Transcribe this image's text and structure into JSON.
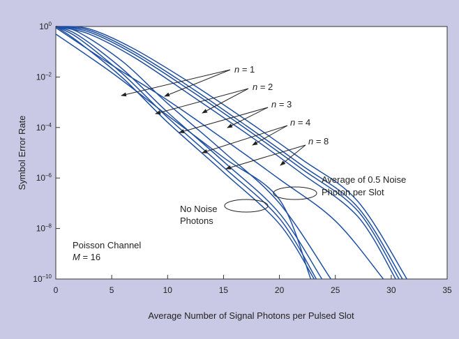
{
  "chart_data": {
    "type": "line",
    "title": "",
    "xlabel": "Average Number of Signal Photons per Pulsed Slot",
    "ylabel": "Symbol Error Rate",
    "xlim": [
      0,
      35
    ],
    "ylim_exponent": [
      -10,
      0
    ],
    "yscale": "log",
    "xticks": [
      "0",
      "5",
      "10",
      "15",
      "20",
      "25",
      "30",
      "35"
    ],
    "yticks": [
      {
        "base": "10",
        "exp": "0"
      },
      {
        "base": "10",
        "exp": "–2"
      },
      {
        "base": "10",
        "exp": "–4"
      },
      {
        "base": "10",
        "exp": "–6"
      },
      {
        "base": "10",
        "exp": "–8"
      },
      {
        "base": "10",
        "exp": "–10"
      }
    ],
    "grid": false,
    "series": [
      {
        "group": "no-noise",
        "n": "1",
        "x": [
          0,
          5,
          10,
          15,
          20,
          22.8
        ],
        "y": [
          0.5,
          0.015,
          0.0003,
          6.5e-06,
          1.4e-07,
          1e-10
        ]
      },
      {
        "group": "no-noise",
        "n": "2",
        "x": [
          0,
          2,
          6,
          10,
          15,
          20,
          23.1
        ],
        "y": [
          1,
          0.25,
          0.009,
          0.00016,
          1.7e-06,
          1.5e-08,
          1e-10
        ]
      },
      {
        "group": "no-noise",
        "n": "3",
        "x": [
          0,
          2,
          6,
          10,
          15,
          20,
          23.3
        ],
        "y": [
          1,
          0.35,
          0.013,
          0.00025,
          2.7e-06,
          2.5e-08,
          1e-10
        ]
      },
      {
        "group": "no-noise",
        "n": "4",
        "x": [
          0,
          2,
          6,
          10,
          15,
          20,
          23.8
        ],
        "y": [
          1,
          0.45,
          0.02,
          0.0004,
          4.5e-06,
          4e-08,
          1e-10
        ]
      },
      {
        "group": "no-noise",
        "n": "8",
        "x": [
          0,
          2,
          6,
          10,
          15,
          20,
          24.6
        ],
        "y": [
          1,
          0.6,
          0.04,
          0.0009,
          1.1e-05,
          1e-07,
          1e-10
        ]
      },
      {
        "group": "noise",
        "n": "1",
        "x": [
          0,
          5,
          10,
          15,
          20,
          25,
          29.3
        ],
        "y": [
          0.9,
          0.03,
          0.0012,
          3.5e-05,
          9e-07,
          2e-08,
          1e-10
        ]
      },
      {
        "group": "noise",
        "n": "2",
        "x": [
          0,
          3,
          7,
          12,
          17,
          22,
          27,
          30.4
        ],
        "y": [
          1,
          0.5,
          0.06,
          0.002,
          6e-05,
          1.5e-06,
          3e-08,
          1e-10
        ]
      },
      {
        "group": "noise",
        "n": "3",
        "x": [
          0,
          3,
          7,
          12,
          17,
          22,
          27,
          30.7
        ],
        "y": [
          1,
          0.6,
          0.08,
          0.003,
          9e-05,
          2.3e-06,
          5e-08,
          1e-10
        ]
      },
      {
        "group": "noise",
        "n": "4",
        "x": [
          0,
          3,
          7,
          12,
          17,
          22,
          27,
          31.0
        ],
        "y": [
          1,
          0.7,
          0.1,
          0.004,
          0.00012,
          3.2e-06,
          7e-08,
          1e-10
        ]
      },
      {
        "group": "noise",
        "n": "8",
        "x": [
          0,
          3,
          7,
          12,
          17,
          22,
          27,
          31.4
        ],
        "y": [
          1,
          0.8,
          0.13,
          0.006,
          0.0002,
          5.5e-06,
          1.2e-07,
          1e-10
        ]
      }
    ],
    "annotations": {
      "n1": {
        "var": "n",
        "eq": " = 1"
      },
      "n2": {
        "var": "n",
        "eq": " = 2"
      },
      "n3": {
        "var": "n",
        "eq": " = 3"
      },
      "n4": {
        "var": "n",
        "eq": " = 4"
      },
      "n8": {
        "var": "n",
        "eq": " = 8"
      },
      "no_noise": [
        "No Noise",
        "Photons"
      ],
      "noise": [
        "Average of 0.5 Noise",
        "Photon per Slot"
      ],
      "channel": {
        "line1": "Poisson Channel",
        "var": "M",
        "eq": " = 16"
      }
    },
    "colors": {
      "line": "#1f4fa3",
      "plot_bg": "#ffffff",
      "page_bg": "#c9c8e5",
      "text": "#222222"
    }
  }
}
